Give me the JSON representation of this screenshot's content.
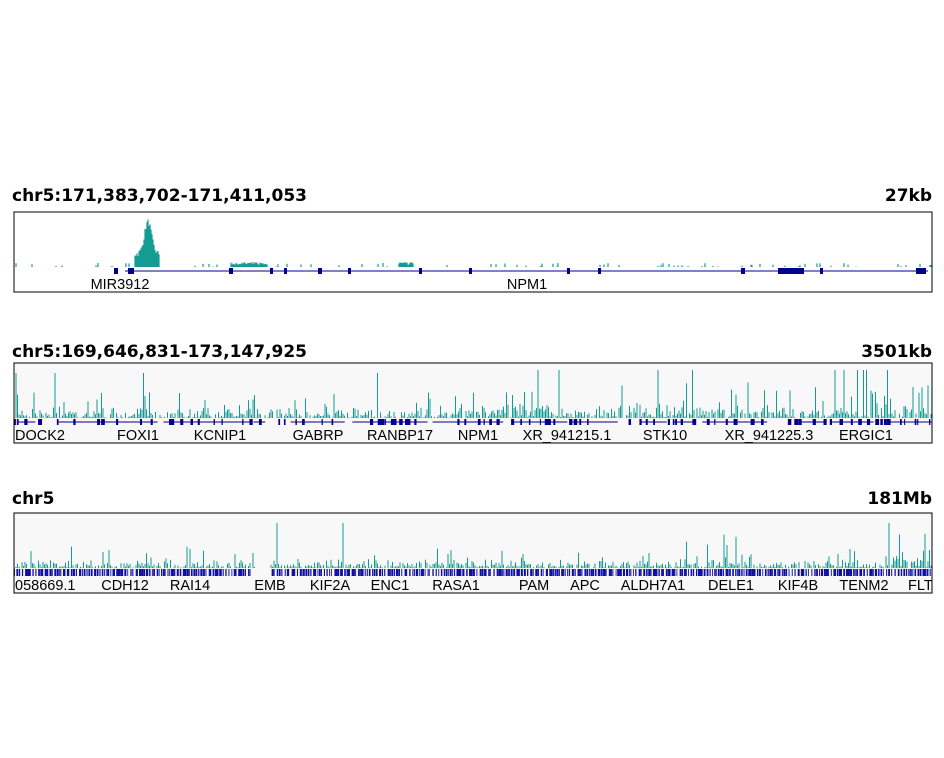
{
  "panels": [
    {
      "locus": "chr5:171,383,702-171,411,053",
      "span": "27kb",
      "genes": [
        "MIR3912",
        "NPM1"
      ]
    },
    {
      "locus": "chr5:169,646,831-173,147,925",
      "span": "3501kb",
      "genes": [
        "DOCK2",
        "FOXI1",
        "KCNIP1",
        "GABRP",
        "RANBP17",
        "NPM1",
        "XR_941215.1",
        "STK10",
        "XR_941225.3",
        "ERGIC1"
      ]
    },
    {
      "locus": "chr5",
      "span": "181Mb",
      "genes": [
        "058669.1",
        "CDH12",
        "RAI14",
        "EMB",
        "KIF2A",
        "ENC1",
        "RASA1",
        "PAM",
        "APC",
        "ALDH7A1",
        "DELE1",
        "KIF4B",
        "TENM2",
        "FLT"
      ]
    }
  ]
}
